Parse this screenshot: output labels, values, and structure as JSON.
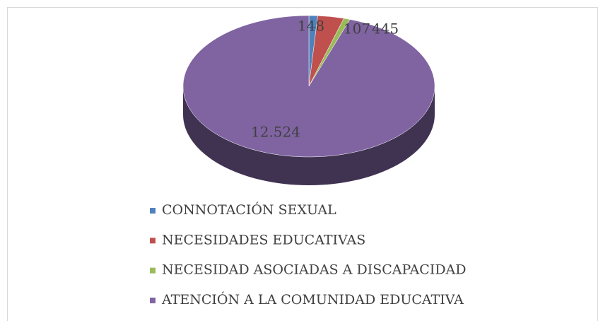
{
  "chart_data": {
    "type": "pie",
    "categories": [
      "CONNOTACIÓN SEXUAL",
      "NECESIDADES EDUCATIVAS",
      "NECESIDAD ASOCIADAS A DISCAPACIDAD",
      "ATENCIÓN A LA COMUNIDAD EDUCATIVA"
    ],
    "values": [
      148,
      445,
      107,
      12524
    ],
    "value_labels": [
      "148",
      "445",
      "107",
      "12.524"
    ],
    "colors": [
      "#4f81bd",
      "#c0504d",
      "#9bbb59",
      "#8064a2"
    ],
    "legend": "bottom"
  }
}
